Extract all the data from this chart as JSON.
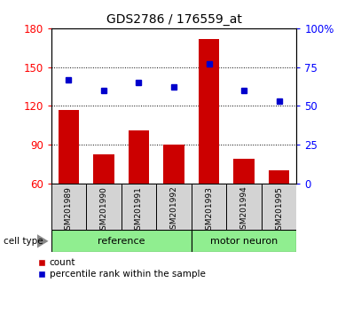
{
  "title": "GDS2786 / 176559_at",
  "samples": [
    "GSM201989",
    "GSM201990",
    "GSM201991",
    "GSM201992",
    "GSM201993",
    "GSM201994",
    "GSM201995"
  ],
  "counts": [
    117,
    83,
    101,
    90,
    172,
    79,
    70
  ],
  "percentiles": [
    67,
    60,
    65,
    62,
    77,
    60,
    53
  ],
  "ylim_left": [
    60,
    180
  ],
  "yticks_left": [
    60,
    90,
    120,
    150,
    180
  ],
  "ylim_right": [
    0,
    100
  ],
  "yticks_right": [
    0,
    25,
    50,
    75,
    100
  ],
  "ytick_labels_right": [
    "0",
    "25",
    "50",
    "75",
    "100%"
  ],
  "bar_color": "#cc0000",
  "dot_color": "#0000cc",
  "bar_width": 0.6,
  "ref_count": 4,
  "legend_count": "count",
  "legend_percentile": "percentile rank within the sample"
}
